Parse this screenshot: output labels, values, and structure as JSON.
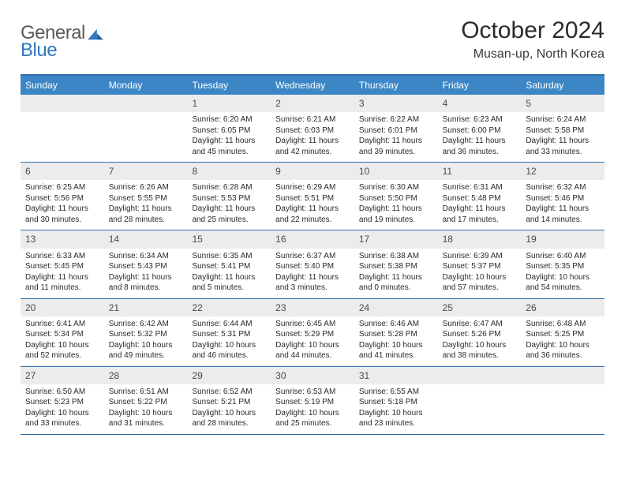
{
  "brand": {
    "general": "General",
    "blue": "Blue"
  },
  "title": "October 2024",
  "location": "Musan-up, North Korea",
  "colors": {
    "header_blue": "#3d86c6",
    "border_blue": "#2d6ca8",
    "daynum_bg": "#ececec",
    "logo_blue": "#2f78c1",
    "logo_gray": "#5b5b5b"
  },
  "day_labels": [
    "Sunday",
    "Monday",
    "Tuesday",
    "Wednesday",
    "Thursday",
    "Friday",
    "Saturday"
  ],
  "weeks": [
    [
      {
        "num": "",
        "sunrise": "",
        "sunset": "",
        "daylight": ""
      },
      {
        "num": "",
        "sunrise": "",
        "sunset": "",
        "daylight": ""
      },
      {
        "num": "1",
        "sunrise": "Sunrise: 6:20 AM",
        "sunset": "Sunset: 6:05 PM",
        "daylight": "Daylight: 11 hours and 45 minutes."
      },
      {
        "num": "2",
        "sunrise": "Sunrise: 6:21 AM",
        "sunset": "Sunset: 6:03 PM",
        "daylight": "Daylight: 11 hours and 42 minutes."
      },
      {
        "num": "3",
        "sunrise": "Sunrise: 6:22 AM",
        "sunset": "Sunset: 6:01 PM",
        "daylight": "Daylight: 11 hours and 39 minutes."
      },
      {
        "num": "4",
        "sunrise": "Sunrise: 6:23 AM",
        "sunset": "Sunset: 6:00 PM",
        "daylight": "Daylight: 11 hours and 36 minutes."
      },
      {
        "num": "5",
        "sunrise": "Sunrise: 6:24 AM",
        "sunset": "Sunset: 5:58 PM",
        "daylight": "Daylight: 11 hours and 33 minutes."
      }
    ],
    [
      {
        "num": "6",
        "sunrise": "Sunrise: 6:25 AM",
        "sunset": "Sunset: 5:56 PM",
        "daylight": "Daylight: 11 hours and 30 minutes."
      },
      {
        "num": "7",
        "sunrise": "Sunrise: 6:26 AM",
        "sunset": "Sunset: 5:55 PM",
        "daylight": "Daylight: 11 hours and 28 minutes."
      },
      {
        "num": "8",
        "sunrise": "Sunrise: 6:28 AM",
        "sunset": "Sunset: 5:53 PM",
        "daylight": "Daylight: 11 hours and 25 minutes."
      },
      {
        "num": "9",
        "sunrise": "Sunrise: 6:29 AM",
        "sunset": "Sunset: 5:51 PM",
        "daylight": "Daylight: 11 hours and 22 minutes."
      },
      {
        "num": "10",
        "sunrise": "Sunrise: 6:30 AM",
        "sunset": "Sunset: 5:50 PM",
        "daylight": "Daylight: 11 hours and 19 minutes."
      },
      {
        "num": "11",
        "sunrise": "Sunrise: 6:31 AM",
        "sunset": "Sunset: 5:48 PM",
        "daylight": "Daylight: 11 hours and 17 minutes."
      },
      {
        "num": "12",
        "sunrise": "Sunrise: 6:32 AM",
        "sunset": "Sunset: 5:46 PM",
        "daylight": "Daylight: 11 hours and 14 minutes."
      }
    ],
    [
      {
        "num": "13",
        "sunrise": "Sunrise: 6:33 AM",
        "sunset": "Sunset: 5:45 PM",
        "daylight": "Daylight: 11 hours and 11 minutes."
      },
      {
        "num": "14",
        "sunrise": "Sunrise: 6:34 AM",
        "sunset": "Sunset: 5:43 PM",
        "daylight": "Daylight: 11 hours and 8 minutes."
      },
      {
        "num": "15",
        "sunrise": "Sunrise: 6:35 AM",
        "sunset": "Sunset: 5:41 PM",
        "daylight": "Daylight: 11 hours and 5 minutes."
      },
      {
        "num": "16",
        "sunrise": "Sunrise: 6:37 AM",
        "sunset": "Sunset: 5:40 PM",
        "daylight": "Daylight: 11 hours and 3 minutes."
      },
      {
        "num": "17",
        "sunrise": "Sunrise: 6:38 AM",
        "sunset": "Sunset: 5:38 PM",
        "daylight": "Daylight: 11 hours and 0 minutes."
      },
      {
        "num": "18",
        "sunrise": "Sunrise: 6:39 AM",
        "sunset": "Sunset: 5:37 PM",
        "daylight": "Daylight: 10 hours and 57 minutes."
      },
      {
        "num": "19",
        "sunrise": "Sunrise: 6:40 AM",
        "sunset": "Sunset: 5:35 PM",
        "daylight": "Daylight: 10 hours and 54 minutes."
      }
    ],
    [
      {
        "num": "20",
        "sunrise": "Sunrise: 6:41 AM",
        "sunset": "Sunset: 5:34 PM",
        "daylight": "Daylight: 10 hours and 52 minutes."
      },
      {
        "num": "21",
        "sunrise": "Sunrise: 6:42 AM",
        "sunset": "Sunset: 5:32 PM",
        "daylight": "Daylight: 10 hours and 49 minutes."
      },
      {
        "num": "22",
        "sunrise": "Sunrise: 6:44 AM",
        "sunset": "Sunset: 5:31 PM",
        "daylight": "Daylight: 10 hours and 46 minutes."
      },
      {
        "num": "23",
        "sunrise": "Sunrise: 6:45 AM",
        "sunset": "Sunset: 5:29 PM",
        "daylight": "Daylight: 10 hours and 44 minutes."
      },
      {
        "num": "24",
        "sunrise": "Sunrise: 6:46 AM",
        "sunset": "Sunset: 5:28 PM",
        "daylight": "Daylight: 10 hours and 41 minutes."
      },
      {
        "num": "25",
        "sunrise": "Sunrise: 6:47 AM",
        "sunset": "Sunset: 5:26 PM",
        "daylight": "Daylight: 10 hours and 38 minutes."
      },
      {
        "num": "26",
        "sunrise": "Sunrise: 6:48 AM",
        "sunset": "Sunset: 5:25 PM",
        "daylight": "Daylight: 10 hours and 36 minutes."
      }
    ],
    [
      {
        "num": "27",
        "sunrise": "Sunrise: 6:50 AM",
        "sunset": "Sunset: 5:23 PM",
        "daylight": "Daylight: 10 hours and 33 minutes."
      },
      {
        "num": "28",
        "sunrise": "Sunrise: 6:51 AM",
        "sunset": "Sunset: 5:22 PM",
        "daylight": "Daylight: 10 hours and 31 minutes."
      },
      {
        "num": "29",
        "sunrise": "Sunrise: 6:52 AM",
        "sunset": "Sunset: 5:21 PM",
        "daylight": "Daylight: 10 hours and 28 minutes."
      },
      {
        "num": "30",
        "sunrise": "Sunrise: 6:53 AM",
        "sunset": "Sunset: 5:19 PM",
        "daylight": "Daylight: 10 hours and 25 minutes."
      },
      {
        "num": "31",
        "sunrise": "Sunrise: 6:55 AM",
        "sunset": "Sunset: 5:18 PM",
        "daylight": "Daylight: 10 hours and 23 minutes."
      },
      {
        "num": "",
        "sunrise": "",
        "sunset": "",
        "daylight": ""
      },
      {
        "num": "",
        "sunrise": "",
        "sunset": "",
        "daylight": ""
      }
    ]
  ]
}
